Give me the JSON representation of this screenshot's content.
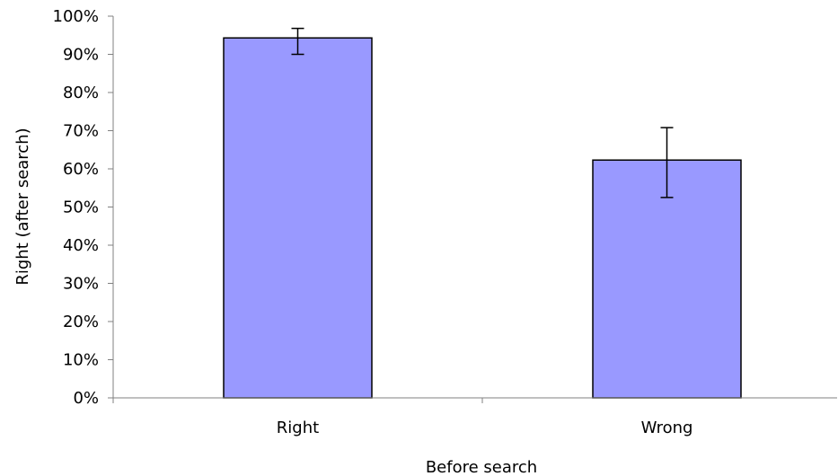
{
  "chart_data": {
    "type": "bar",
    "categories": [
      "Right",
      "Wrong"
    ],
    "values": [
      94.3,
      62.3
    ],
    "error_low": [
      90.0,
      52.5
    ],
    "error_high": [
      96.8,
      70.8
    ],
    "ylim": [
      0,
      100
    ],
    "yticks": [
      0,
      10,
      20,
      30,
      40,
      50,
      60,
      70,
      80,
      90,
      100
    ],
    "ytick_suffix": "%",
    "title": "",
    "xlabel": "Before search",
    "ylabel": "Right (after search)",
    "grid": false,
    "legend": "none",
    "colors": {
      "bar_fill": "#9999ff",
      "bar_stroke": "#000000",
      "axis": "#808080"
    }
  }
}
